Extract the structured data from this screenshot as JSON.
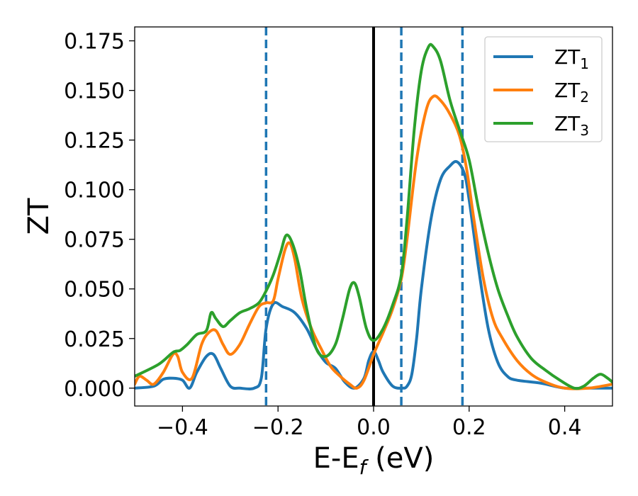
{
  "chart_data": {
    "type": "line",
    "title": "",
    "xlabel": {
      "main": "E-E",
      "sub": "f",
      "suffix": " (eV)"
    },
    "ylabel": "ZT",
    "xlim": [
      -0.5,
      0.5
    ],
    "ylim": [
      -0.009,
      0.182
    ],
    "xticks": [
      -0.4,
      -0.2,
      0.0,
      0.2,
      0.4
    ],
    "xtick_labels": [
      "−0.4",
      "−0.2",
      "0.0",
      "0.2",
      "0.4"
    ],
    "yticks": [
      0.0,
      0.025,
      0.05,
      0.075,
      0.1,
      0.125,
      0.15,
      0.175
    ],
    "ytick_labels": [
      "0.000",
      "0.025",
      "0.050",
      "0.075",
      "0.100",
      "0.125",
      "0.150",
      "0.175"
    ],
    "grid": false,
    "legend_position": "top-right",
    "vertical_lines": [
      {
        "x": 0.0,
        "style": "solid",
        "color": "#000000"
      },
      {
        "x": -0.225,
        "style": "dashed",
        "color": "#1f77b4"
      },
      {
        "x": 0.058,
        "style": "dashed",
        "color": "#1f77b4"
      },
      {
        "x": 0.186,
        "style": "dashed",
        "color": "#1f77b4"
      }
    ],
    "series": [
      {
        "name": {
          "main": "ZT",
          "sub": "1"
        },
        "color": "#1f77b4",
        "points": [
          [
            -0.5,
            0.0
          ],
          [
            -0.46,
            0.001
          ],
          [
            -0.44,
            0.0045
          ],
          [
            -0.42,
            0.005
          ],
          [
            -0.4,
            0.004
          ],
          [
            -0.385,
            0.0
          ],
          [
            -0.37,
            0.008
          ],
          [
            -0.35,
            0.016
          ],
          [
            -0.335,
            0.017
          ],
          [
            -0.32,
            0.01
          ],
          [
            -0.3,
            0.001
          ],
          [
            -0.28,
            0.0
          ],
          [
            -0.25,
            0.0
          ],
          [
            -0.235,
            0.005
          ],
          [
            -0.225,
            0.03
          ],
          [
            -0.21,
            0.0425
          ],
          [
            -0.19,
            0.041
          ],
          [
            -0.165,
            0.038
          ],
          [
            -0.14,
            0.03
          ],
          [
            -0.12,
            0.02
          ],
          [
            -0.1,
            0.013
          ],
          [
            -0.08,
            0.01
          ],
          [
            -0.06,
            0.003
          ],
          [
            -0.04,
            0.0
          ],
          [
            -0.02,
            0.005
          ],
          [
            -0.01,
            0.014
          ],
          [
            0.0,
            0.0185
          ],
          [
            0.01,
            0.014
          ],
          [
            0.02,
            0.008
          ],
          [
            0.04,
            0.001
          ],
          [
            0.06,
            0.0
          ],
          [
            0.07,
            0.001
          ],
          [
            0.08,
            0.007
          ],
          [
            0.09,
            0.025
          ],
          [
            0.1,
            0.05
          ],
          [
            0.12,
            0.085
          ],
          [
            0.14,
            0.105
          ],
          [
            0.16,
            0.112
          ],
          [
            0.175,
            0.114
          ],
          [
            0.19,
            0.108
          ],
          [
            0.2,
            0.095
          ],
          [
            0.22,
            0.06
          ],
          [
            0.24,
            0.03
          ],
          [
            0.26,
            0.013
          ],
          [
            0.28,
            0.006
          ],
          [
            0.3,
            0.004
          ],
          [
            0.35,
            0.0025
          ],
          [
            0.4,
            0.0
          ],
          [
            0.45,
            0.0
          ],
          [
            0.5,
            0.0
          ]
        ]
      },
      {
        "name": {
          "main": "ZT",
          "sub": "2"
        },
        "color": "#ff7f0e",
        "points": [
          [
            -0.5,
            0.002
          ],
          [
            -0.49,
            0.006
          ],
          [
            -0.475,
            0.004
          ],
          [
            -0.46,
            0.002
          ],
          [
            -0.44,
            0.008
          ],
          [
            -0.42,
            0.017
          ],
          [
            -0.41,
            0.016
          ],
          [
            -0.4,
            0.008
          ],
          [
            -0.38,
            0.005
          ],
          [
            -0.36,
            0.022
          ],
          [
            -0.345,
            0.028
          ],
          [
            -0.33,
            0.029
          ],
          [
            -0.315,
            0.022
          ],
          [
            -0.3,
            0.017
          ],
          [
            -0.28,
            0.022
          ],
          [
            -0.26,
            0.032
          ],
          [
            -0.24,
            0.041
          ],
          [
            -0.225,
            0.043
          ],
          [
            -0.21,
            0.044
          ],
          [
            -0.2,
            0.055
          ],
          [
            -0.185,
            0.07
          ],
          [
            -0.175,
            0.073
          ],
          [
            -0.165,
            0.065
          ],
          [
            -0.15,
            0.045
          ],
          [
            -0.13,
            0.03
          ],
          [
            -0.11,
            0.02
          ],
          [
            -0.09,
            0.011
          ],
          [
            -0.07,
            0.006
          ],
          [
            -0.05,
            0.002
          ],
          [
            -0.035,
            0.0
          ],
          [
            -0.02,
            0.004
          ],
          [
            0.0,
            0.017
          ],
          [
            0.02,
            0.028
          ],
          [
            0.04,
            0.04
          ],
          [
            0.058,
            0.055
          ],
          [
            0.07,
            0.075
          ],
          [
            0.09,
            0.115
          ],
          [
            0.11,
            0.14
          ],
          [
            0.125,
            0.147
          ],
          [
            0.14,
            0.145
          ],
          [
            0.16,
            0.138
          ],
          [
            0.18,
            0.127
          ],
          [
            0.195,
            0.11
          ],
          [
            0.21,
            0.085
          ],
          [
            0.23,
            0.055
          ],
          [
            0.25,
            0.035
          ],
          [
            0.27,
            0.025
          ],
          [
            0.3,
            0.014
          ],
          [
            0.33,
            0.007
          ],
          [
            0.36,
            0.003
          ],
          [
            0.4,
            0.0
          ],
          [
            0.45,
            0.0
          ],
          [
            0.5,
            0.002
          ]
        ]
      },
      {
        "name": {
          "main": "ZT",
          "sub": "3"
        },
        "color": "#2ca02c",
        "points": [
          [
            -0.5,
            0.006
          ],
          [
            -0.45,
            0.012
          ],
          [
            -0.42,
            0.018
          ],
          [
            -0.405,
            0.019
          ],
          [
            -0.39,
            0.022
          ],
          [
            -0.37,
            0.027
          ],
          [
            -0.35,
            0.029
          ],
          [
            -0.34,
            0.038
          ],
          [
            -0.33,
            0.035
          ],
          [
            -0.315,
            0.031
          ],
          [
            -0.3,
            0.034
          ],
          [
            -0.28,
            0.038
          ],
          [
            -0.26,
            0.04
          ],
          [
            -0.24,
            0.043
          ],
          [
            -0.225,
            0.049
          ],
          [
            -0.21,
            0.057
          ],
          [
            -0.195,
            0.068
          ],
          [
            -0.183,
            0.077
          ],
          [
            -0.17,
            0.073
          ],
          [
            -0.155,
            0.06
          ],
          [
            -0.14,
            0.04
          ],
          [
            -0.12,
            0.02
          ],
          [
            -0.1,
            0.016
          ],
          [
            -0.08,
            0.022
          ],
          [
            -0.065,
            0.035
          ],
          [
            -0.05,
            0.05
          ],
          [
            -0.04,
            0.053
          ],
          [
            -0.03,
            0.046
          ],
          [
            -0.015,
            0.03
          ],
          [
            0.0,
            0.024
          ],
          [
            0.02,
            0.03
          ],
          [
            0.04,
            0.042
          ],
          [
            0.058,
            0.057
          ],
          [
            0.07,
            0.085
          ],
          [
            0.085,
            0.13
          ],
          [
            0.1,
            0.16
          ],
          [
            0.115,
            0.172
          ],
          [
            0.125,
            0.172
          ],
          [
            0.14,
            0.165
          ],
          [
            0.16,
            0.145
          ],
          [
            0.18,
            0.13
          ],
          [
            0.2,
            0.115
          ],
          [
            0.22,
            0.09
          ],
          [
            0.24,
            0.068
          ],
          [
            0.26,
            0.05
          ],
          [
            0.28,
            0.037
          ],
          [
            0.3,
            0.026
          ],
          [
            0.33,
            0.015
          ],
          [
            0.36,
            0.009
          ],
          [
            0.39,
            0.004
          ],
          [
            0.42,
            0.0
          ],
          [
            0.44,
            0.001
          ],
          [
            0.46,
            0.005
          ],
          [
            0.475,
            0.007
          ],
          [
            0.49,
            0.005
          ],
          [
            0.5,
            0.003
          ]
        ]
      }
    ]
  }
}
